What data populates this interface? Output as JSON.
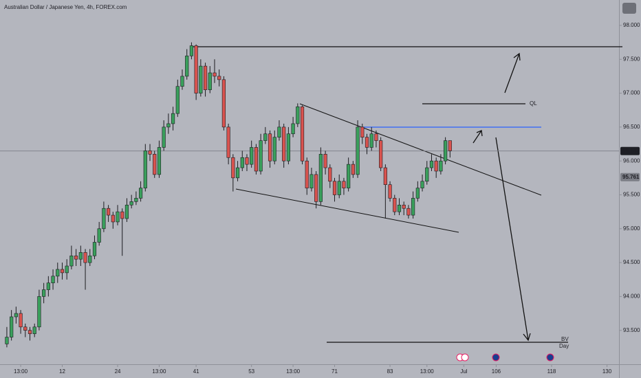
{
  "chart_data": {
    "type": "candlestick",
    "title": "Australian Dollar / Japanese Yen, 4h, FOREX.com",
    "open": [
      93.3,
      93.4,
      93.7,
      93.75,
      93.55,
      93.5,
      93.45,
      93.55,
      94.0,
      94.1,
      94.2,
      94.3,
      94.4,
      94.35,
      94.45,
      94.6,
      94.55,
      94.65,
      94.5,
      94.6,
      94.8,
      95.0,
      95.3,
      95.2,
      95.1,
      95.25,
      95.15,
      95.35,
      95.4,
      95.45,
      95.6,
      96.15,
      96.1,
      95.8,
      96.2,
      96.5,
      96.55,
      96.7,
      97.1,
      97.25,
      97.55,
      97.7,
      97.0,
      97.4,
      97.05,
      97.3,
      97.25,
      97.2,
      96.5,
      96.05,
      95.75,
      95.9,
      96.05,
      95.95,
      96.2,
      95.85,
      96.3,
      96.4,
      96.0,
      96.35,
      96.5,
      96.0,
      96.4,
      96.55,
      96.8,
      96.0,
      95.6,
      95.8,
      95.4,
      96.1,
      95.9,
      95.7,
      95.5,
      95.7,
      95.6,
      95.95,
      95.8,
      96.5,
      96.35,
      96.2,
      96.4,
      96.3,
      95.9,
      95.65,
      95.45,
      95.25,
      95.35,
      95.3,
      95.2,
      95.45,
      95.6,
      95.7,
      95.9,
      96.0,
      95.85,
      96.0,
      96.3
    ],
    "high": [
      93.55,
      93.8,
      93.85,
      93.8,
      93.6,
      93.55,
      93.6,
      94.1,
      94.2,
      94.3,
      94.4,
      94.5,
      94.5,
      94.55,
      94.75,
      94.7,
      94.75,
      94.7,
      94.7,
      94.9,
      95.1,
      95.4,
      95.35,
      95.25,
      95.35,
      95.3,
      95.45,
      95.5,
      95.55,
      95.7,
      96.25,
      96.25,
      96.15,
      96.3,
      96.6,
      96.7,
      96.8,
      97.2,
      97.35,
      97.65,
      97.75,
      97.72,
      97.5,
      97.45,
      97.4,
      97.5,
      97.35,
      97.25,
      96.55,
      96.1,
      96.0,
      96.15,
      96.1,
      96.3,
      96.25,
      96.4,
      96.5,
      96.45,
      96.45,
      96.6,
      96.55,
      96.5,
      96.65,
      96.85,
      96.82,
      96.05,
      95.9,
      95.85,
      96.2,
      96.15,
      95.95,
      95.75,
      95.8,
      95.75,
      96.05,
      96.0,
      96.6,
      96.55,
      96.4,
      96.5,
      96.45,
      96.35,
      95.95,
      95.7,
      95.5,
      95.45,
      95.4,
      95.35,
      95.55,
      95.7,
      95.8,
      96.0,
      96.1,
      96.05,
      96.1,
      96.35,
      96.3
    ],
    "low": [
      93.25,
      93.35,
      93.6,
      93.45,
      93.4,
      93.35,
      93.4,
      93.5,
      93.9,
      94.0,
      94.1,
      94.2,
      94.25,
      94.25,
      94.4,
      94.45,
      94.45,
      94.1,
      94.45,
      94.55,
      94.75,
      94.95,
      95.1,
      95.0,
      95.05,
      94.6,
      95.1,
      95.3,
      95.35,
      95.4,
      95.55,
      96.0,
      95.75,
      95.75,
      96.15,
      96.4,
      96.45,
      96.65,
      97.05,
      97.2,
      97.5,
      96.9,
      96.95,
      96.95,
      97.0,
      97.15,
      97.1,
      96.45,
      95.95,
      95.55,
      95.7,
      95.85,
      95.85,
      95.9,
      95.8,
      95.8,
      96.25,
      95.9,
      95.95,
      96.3,
      95.9,
      95.95,
      96.35,
      96.5,
      95.95,
      95.5,
      95.55,
      95.3,
      95.35,
      95.8,
      95.6,
      95.4,
      95.45,
      95.5,
      95.55,
      95.75,
      95.75,
      96.25,
      96.1,
      96.15,
      96.2,
      95.85,
      95.15,
      95.4,
      95.2,
      95.2,
      95.2,
      95.15,
      95.15,
      95.4,
      95.55,
      95.65,
      95.85,
      95.75,
      95.8,
      95.95,
      96.05
    ],
    "close": [
      93.4,
      93.7,
      93.75,
      93.55,
      93.5,
      93.45,
      93.55,
      94.0,
      94.1,
      94.2,
      94.3,
      94.4,
      94.35,
      94.45,
      94.6,
      94.55,
      94.65,
      94.5,
      94.6,
      94.8,
      95.0,
      95.3,
      95.2,
      95.1,
      95.25,
      95.15,
      95.35,
      95.4,
      95.45,
      95.6,
      96.15,
      96.1,
      95.8,
      96.2,
      96.5,
      96.55,
      96.7,
      97.1,
      97.25,
      97.55,
      97.7,
      97.0,
      97.4,
      97.05,
      97.3,
      97.25,
      97.2,
      96.5,
      96.05,
      95.75,
      95.9,
      96.05,
      95.95,
      96.2,
      95.85,
      96.3,
      96.4,
      96.0,
      96.35,
      96.5,
      96.0,
      96.4,
      96.55,
      96.8,
      96.0,
      95.6,
      95.8,
      95.4,
      96.1,
      95.9,
      95.7,
      95.5,
      95.7,
      95.6,
      95.95,
      95.8,
      96.5,
      96.35,
      96.2,
      96.4,
      96.3,
      95.9,
      95.65,
      95.45,
      95.25,
      95.35,
      95.3,
      95.2,
      95.45,
      95.6,
      95.7,
      95.9,
      96.0,
      95.85,
      96.0,
      96.3,
      96.15
    ],
    "up_color": "#3a9f5c",
    "down_color": "#d9534f",
    "xlim": [
      -1.48,
      132.6
    ],
    "xticks": [
      {
        "value": 3,
        "label": "13:00"
      },
      12,
      24,
      {
        "value": 33,
        "label": "13:00"
      },
      41,
      53,
      {
        "value": 62,
        "label": "13:00"
      },
      71,
      83,
      {
        "value": 91,
        "label": "13:00"
      },
      {
        "value": 99,
        "label": "Jul"
      },
      106,
      118,
      130
    ],
    "ylim": [
      93.0,
      98.375
    ],
    "yticks": [
      {
        "value": 93.5,
        "label": "93.500"
      },
      {
        "value": 94.0,
        "label": "94.000"
      },
      {
        "value": 94.5,
        "label": "94.500"
      },
      {
        "value": 95.0,
        "label": "95.000"
      },
      {
        "value": 95.5,
        "label": "95.500"
      },
      {
        "value": 96.0,
        "label": "96.000"
      },
      {
        "value": 96.5,
        "label": "96.500"
      },
      {
        "value": 97.0,
        "label": "97.000"
      },
      {
        "value": 97.5,
        "label": "97.500"
      },
      {
        "value": 98.0,
        "label": "98.000"
      }
    ],
    "last_price": {
      "value": 96.147,
      "label": "96.147"
    },
    "marker_price": {
      "value": 95.761,
      "label": "95.761"
    },
    "annotations": [
      "QL",
      "BV",
      "Day"
    ]
  }
}
